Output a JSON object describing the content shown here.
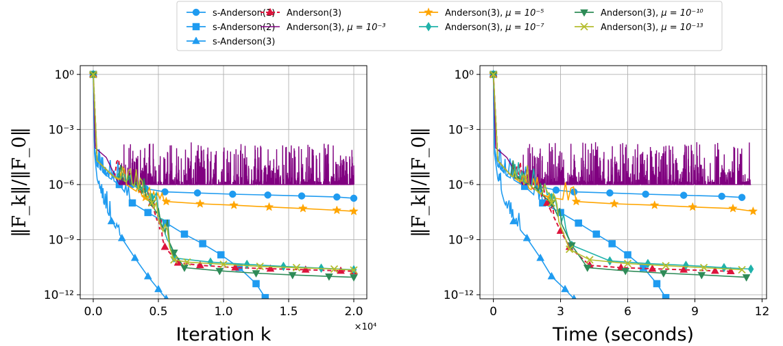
{
  "chart_data": [
    {
      "type": "line",
      "xlabel": "Iteration k",
      "ylabel": "‖F_k‖/‖F_0‖",
      "x_offset_label": "×10⁴",
      "yscale": "log",
      "xlim": [
        -1000,
        21000
      ],
      "ylim": [
        6e-13,
        3
      ],
      "x_ticks": [
        0,
        5000,
        10000,
        15000,
        20000
      ],
      "x_tick_labels": [
        "0.0",
        "0.5",
        "1.0",
        "1.5",
        "2.0"
      ],
      "y_ticks": [
        1,
        0.001,
        1e-06,
        1e-09,
        1e-12
      ],
      "y_tick_labels": [
        "10⁰",
        "10⁻³",
        "10⁻⁶",
        "10⁻⁹",
        "10⁻¹²"
      ],
      "grid": true,
      "series": [
        {
          "name": "s-Anderson(1)",
          "color": "#1f9bf0",
          "marker": "circle",
          "line": "solid",
          "x": [
            0,
            100,
            300,
            1000,
            2000,
            3000,
            4000,
            5500,
            8000,
            10700,
            13400,
            16000,
            18700,
            20000
          ],
          "y": [
            1,
            0.0001,
            1e-05,
            3e-06,
            2e-06,
            1e-06,
            6e-07,
            4e-07,
            3.5e-07,
            3e-07,
            2.7e-07,
            2.4e-07,
            2.1e-07,
            1.8e-07
          ]
        },
        {
          "name": "s-Anderson(2)",
          "color": "#1f9bf0",
          "marker": "square",
          "line": "solid",
          "x": [
            0,
            100,
            300,
            1000,
            2000,
            3000,
            4200,
            5600,
            7000,
            8400,
            9800,
            11200,
            12500,
            13200
          ],
          "y": [
            1,
            0.0001,
            1e-05,
            3e-06,
            1e-06,
            1e-07,
            3e-08,
            8e-09,
            2e-09,
            6e-10,
            1.5e-10,
            3e-11,
            4e-12,
            7e-13
          ]
        },
        {
          "name": "s-Anderson(3)",
          "color": "#1f9bf0",
          "marker": "triangle-up",
          "line": "solid",
          "x": [
            0,
            100,
            300,
            800,
            1400,
            2200,
            3200,
            4200,
            5000,
            5600
          ],
          "y": [
            1,
            5e-05,
            2e-06,
            1e-07,
            1e-08,
            1.2e-09,
            1e-10,
            1e-11,
            2e-12,
            6e-13
          ]
        },
        {
          "name": "Anderson(3)",
          "color": "#dc143c",
          "marker": "triangle-up",
          "line": "dashed",
          "x": [
            0,
            300,
            1500,
            3000,
            4500,
            5500,
            6500,
            8200,
            10900,
            13600,
            16300,
            19000,
            20000
          ],
          "y": [
            1,
            2e-05,
            3e-06,
            1e-06,
            1e-07,
            4e-10,
            5.5e-11,
            4e-11,
            3e-11,
            2.6e-11,
            2.3e-11,
            2e-11,
            1.9e-11
          ]
        },
        {
          "name": "Anderson(3), μ = 10⁻³",
          "color": "#800080",
          "marker": "none",
          "line": "noisy",
          "x": [
            0,
            150,
            1000,
            2000,
            20000
          ],
          "y": [
            1,
            0.0001,
            3e-05,
            1e-06,
            1e-06
          ]
        },
        {
          "name": "Anderson(3), μ = 10⁻⁵",
          "color": "#ffa500",
          "marker": "star",
          "line": "solid",
          "x": [
            0,
            300,
            1500,
            3000,
            4000,
            5600,
            8200,
            10800,
            13500,
            16100,
            18700,
            20000
          ],
          "y": [
            1,
            2e-05,
            3e-06,
            6e-07,
            2e-07,
            1.2e-07,
            9e-08,
            7.5e-08,
            6e-08,
            5e-08,
            4e-08,
            3.5e-08
          ]
        },
        {
          "name": "Anderson(3), μ = 10⁻⁷",
          "color": "#20b2aa",
          "marker": "diamond",
          "line": "solid",
          "x": [
            0,
            300,
            1500,
            3000,
            4500,
            6200,
            9000,
            11800,
            14600,
            17500,
            20000
          ],
          "y": [
            1,
            2e-05,
            3e-06,
            1e-06,
            2e-07,
            1e-10,
            6e-11,
            4.5e-11,
            3.5e-11,
            2.8e-11,
            2.3e-11
          ]
        },
        {
          "name": "Anderson(3), μ = 10⁻¹⁰",
          "color": "#2e8b57",
          "marker": "triangle-down",
          "line": "solid",
          "x": [
            0,
            300,
            1500,
            3000,
            4500,
            6200,
            7000,
            9700,
            12500,
            15300,
            18100,
            20000
          ],
          "y": [
            1,
            2e-05,
            3e-06,
            1e-06,
            1e-07,
            2e-10,
            3e-11,
            2e-11,
            1.5e-11,
            1.2e-11,
            1e-11,
            9e-12
          ]
        },
        {
          "name": "Anderson(3), μ = 10⁻¹³",
          "color": "#b5bd2e",
          "marker": "x",
          "line": "solid",
          "x": [
            0,
            300,
            1500,
            3000,
            4500,
            6200,
            7200,
            10000,
            12800,
            15600,
            18500,
            20000
          ],
          "y": [
            1,
            2e-05,
            3e-06,
            1e-06,
            1e-07,
            8e-11,
            6e-11,
            4.5e-11,
            3.5e-11,
            3e-11,
            2.5e-11,
            2.2e-11
          ]
        }
      ]
    },
    {
      "type": "line",
      "xlabel": "Time (seconds)",
      "ylabel": "‖F_k‖/‖F_0‖",
      "yscale": "log",
      "xlim": [
        -0.6,
        12.2
      ],
      "ylim": [
        6e-13,
        3
      ],
      "x_ticks": [
        0,
        3,
        6,
        9,
        12
      ],
      "x_tick_labels": [
        "0",
        "3",
        "6",
        "9",
        "12"
      ],
      "y_ticks": [
        1,
        0.001,
        1e-06,
        1e-09,
        1e-12
      ],
      "y_tick_labels": [
        "10⁰",
        "10⁻³",
        "10⁻⁶",
        "10⁻⁹",
        "10⁻¹²"
      ],
      "grid": true,
      "series": [
        {
          "name": "s-Anderson(1)",
          "color": "#1f9bf0",
          "marker": "circle",
          "line": "solid",
          "x": [
            0,
            0.05,
            0.2,
            0.6,
            1.3,
            2.0,
            2.8,
            3.6,
            5.2,
            6.8,
            8.5,
            10.2,
            11.1
          ],
          "y": [
            1,
            0.0001,
            1e-05,
            3e-06,
            1.5e-06,
            8e-07,
            5e-07,
            4e-07,
            3.5e-07,
            3e-07,
            2.6e-07,
            2.3e-07,
            2e-07
          ]
        },
        {
          "name": "s-Anderson(2)",
          "color": "#1f9bf0",
          "marker": "square",
          "line": "solid",
          "x": [
            0,
            0.05,
            0.2,
            0.6,
            1.4,
            2.2,
            3.0,
            3.8,
            4.6,
            5.3,
            6.0,
            6.7,
            7.3,
            7.7
          ],
          "y": [
            1,
            0.0001,
            1e-05,
            3e-06,
            8e-07,
            1e-07,
            3e-08,
            8e-09,
            2e-09,
            6e-10,
            1.5e-10,
            3e-11,
            4e-12,
            7e-13
          ]
        },
        {
          "name": "s-Anderson(3)",
          "color": "#1f9bf0",
          "marker": "triangle-up",
          "line": "solid",
          "x": [
            0,
            0.05,
            0.2,
            0.5,
            0.9,
            1.5,
            2.1,
            2.6,
            3.2,
            3.6
          ],
          "y": [
            1,
            5e-05,
            2e-06,
            1e-07,
            1e-08,
            1.2e-09,
            1e-10,
            1e-11,
            2e-12,
            6e-13
          ]
        },
        {
          "name": "Anderson(3)",
          "color": "#dc143c",
          "marker": "triangle-up",
          "line": "dashed",
          "x": [
            0,
            0.2,
            0.8,
            1.6,
            2.4,
            3.0,
            3.4,
            4.3,
            5.7,
            7.1,
            8.5,
            9.9,
            10.6
          ],
          "y": [
            1,
            2e-05,
            3e-06,
            1e-06,
            1e-07,
            3e-09,
            4e-10,
            4e-11,
            3e-11,
            2.6e-11,
            2.3e-11,
            2e-11,
            1.9e-11
          ]
        },
        {
          "name": "Anderson(3), μ = 10⁻³",
          "color": "#800080",
          "marker": "none",
          "line": "noisy",
          "x": [
            0,
            0.1,
            0.6,
            1.3,
            11.5
          ],
          "y": [
            1,
            0.0001,
            3e-05,
            1e-06,
            1e-06
          ]
        },
        {
          "name": "Anderson(3), μ = 10⁻⁵",
          "color": "#ffa500",
          "marker": "star",
          "line": "solid",
          "x": [
            0,
            0.2,
            0.8,
            1.6,
            2.5,
            3.7,
            5.4,
            7.2,
            8.9,
            10.7,
            11.6
          ],
          "y": [
            1,
            2e-05,
            3e-06,
            6e-07,
            2e-07,
            1.2e-07,
            9e-08,
            7.5e-08,
            6e-08,
            5e-08,
            3.5e-08
          ]
        },
        {
          "name": "Anderson(3), μ = 10⁻⁷",
          "color": "#20b2aa",
          "marker": "diamond",
          "line": "solid",
          "x": [
            0,
            0.2,
            0.8,
            1.6,
            2.6,
            3.5,
            5.2,
            6.9,
            8.6,
            10.3,
            11.5
          ],
          "y": [
            1,
            2e-05,
            3e-06,
            1e-06,
            2e-07,
            5e-10,
            7e-11,
            5e-11,
            4e-11,
            3e-11,
            2.5e-11
          ]
        },
        {
          "name": "Anderson(3), μ = 10⁻¹⁰",
          "color": "#2e8b57",
          "marker": "triangle-down",
          "line": "solid",
          "x": [
            0,
            0.2,
            0.8,
            1.6,
            2.6,
            3.5,
            4.2,
            5.9,
            7.6,
            9.3,
            11.3
          ],
          "y": [
            1,
            2e-05,
            3e-06,
            1e-06,
            1e-07,
            5e-10,
            3e-11,
            2e-11,
            1.5e-11,
            1.2e-11,
            9e-12
          ]
        },
        {
          "name": "Anderson(3), μ = 10⁻¹³",
          "color": "#b5bd2e",
          "marker": "x",
          "line": "solid",
          "x": [
            0,
            0.2,
            0.8,
            1.6,
            2.6,
            3.4,
            4.3,
            6.0,
            7.7,
            9.4,
            11.1
          ],
          "y": [
            1,
            2e-05,
            3e-06,
            1e-06,
            1e-07,
            3e-10,
            8e-11,
            5e-11,
            3.8e-11,
            3e-11,
            2.3e-11
          ]
        }
      ]
    }
  ],
  "legend": {
    "placement": "top-center",
    "items": [
      {
        "text": "s-Anderson(1)",
        "math": ""
      },
      {
        "text": "s-Anderson(2)",
        "math": ""
      },
      {
        "text": "s-Anderson(3)",
        "math": ""
      },
      {
        "text": "Anderson(3)",
        "math": ""
      },
      {
        "text": "Anderson(3), ",
        "math": "μ = 10⁻³"
      },
      {
        "text": "Anderson(3), ",
        "math": "μ = 10⁻⁵"
      },
      {
        "text": "Anderson(3), ",
        "math": "μ = 10⁻⁷"
      },
      {
        "text": "Anderson(3), ",
        "math": "μ = 10⁻¹⁰"
      },
      {
        "text": "Anderson(3), ",
        "math": "μ = 10⁻¹³"
      }
    ]
  }
}
